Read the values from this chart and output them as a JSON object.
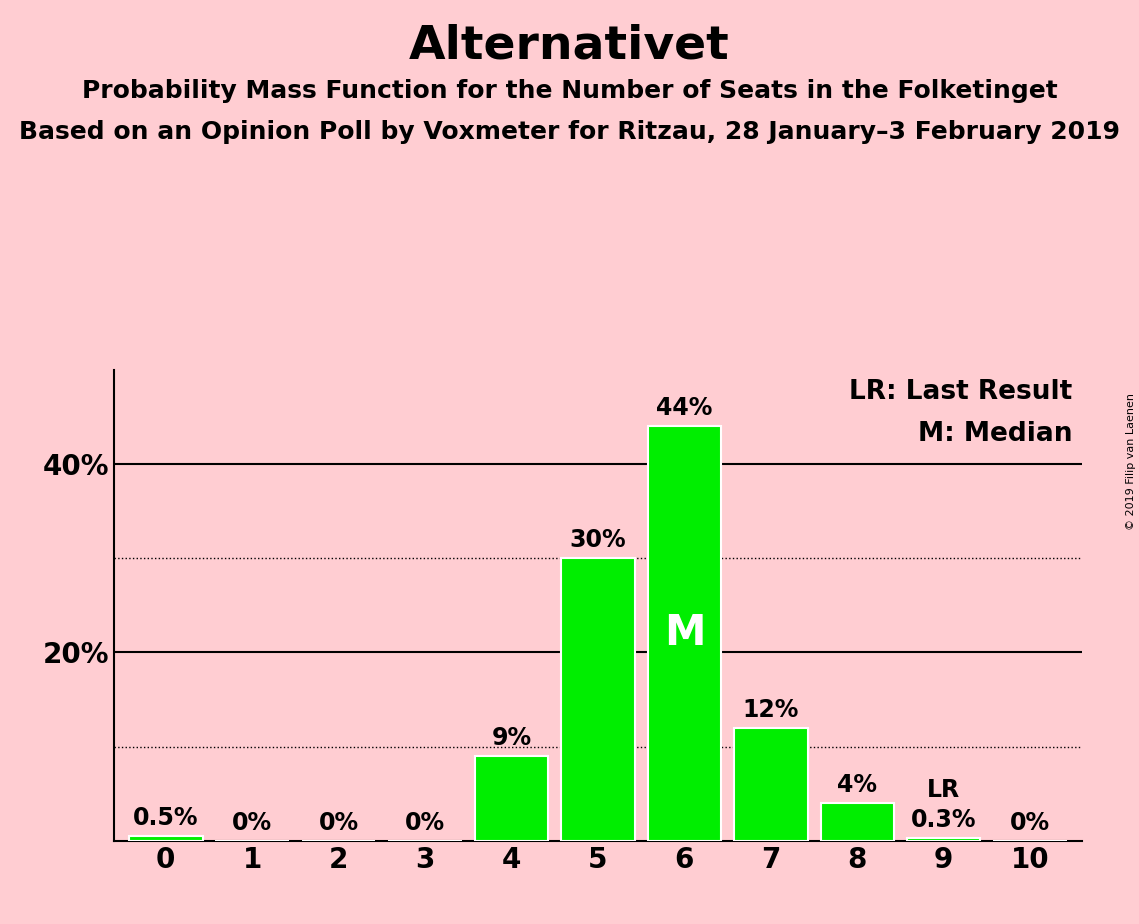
{
  "title": "Alternativet",
  "subtitle1": "Probability Mass Function for the Number of Seats in the Folketinget",
  "subtitle2": "Based on an Opinion Poll by Voxmeter for Ritzau, 28 January–3 February 2019",
  "copyright_text": "© 2019 Filip van Laenen",
  "categories": [
    0,
    1,
    2,
    3,
    4,
    5,
    6,
    7,
    8,
    9,
    10
  ],
  "values": [
    0.5,
    0.0,
    0.0,
    0.0,
    9.0,
    30.0,
    44.0,
    12.0,
    4.0,
    0.3,
    0.0
  ],
  "bar_labels": [
    "0.5%",
    "0%",
    "0%",
    "0%",
    "9%",
    "30%",
    "44%",
    "12%",
    "4%",
    "0.3%",
    "0%"
  ],
  "bar_color": "#00ee00",
  "background_color": "#ffcdd2",
  "bar_edge_color": "white",
  "median_bar": 6,
  "median_label": "M",
  "lr_bar": 9,
  "lr_label": "LR",
  "title_fontsize": 34,
  "subtitle_fontsize": 18,
  "label_fontsize": 17,
  "tick_fontsize": 20,
  "legend_fontsize": 19,
  "ytick_labels": [
    "",
    "",
    "20%",
    "",
    "40%"
  ],
  "yticks": [
    0,
    10,
    20,
    30,
    40
  ],
  "ylim": [
    0,
    50
  ],
  "dotted_lines": [
    10,
    30
  ],
  "solid_lines": [
    20,
    40
  ]
}
